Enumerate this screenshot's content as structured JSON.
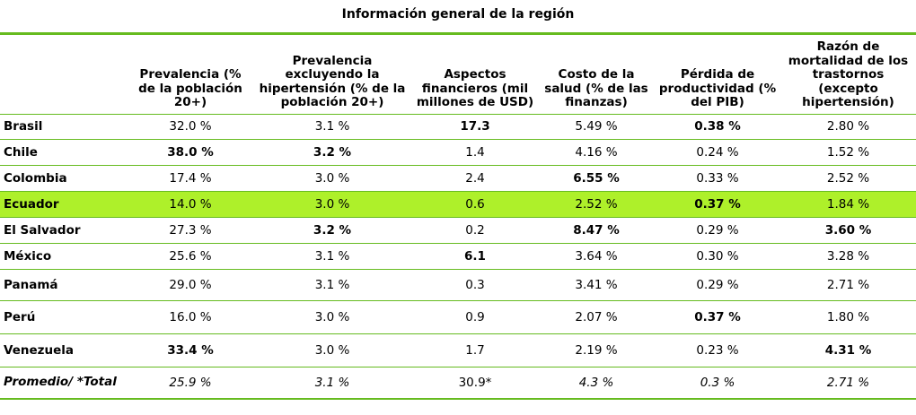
{
  "title": "Información general de la región",
  "headers": [
    "",
    "Prevalencia (% de la población 20+)",
    "Prevalencia excluyendo la hipertensión (% de la población 20+)",
    "Aspectos financieros (mil millones de USD)",
    "Costo de la salud (% de las finanzas)",
    "Pérdida de productividad (% del PIB)",
    "Razón de mortalidad de los trastornos (excepto hipertensión)"
  ],
  "rows": [
    {
      "label": "Brasil",
      "cells": [
        "32.0 %",
        "3.1 %",
        "17.3",
        "5.49 %",
        "0.38 %",
        "2.80 %"
      ]
    },
    {
      "label": "Chile",
      "cells": [
        "38.0 %",
        "3.2 %",
        "1.4",
        "4.16 %",
        "0.24 %",
        "1.52 %"
      ]
    },
    {
      "label": "Colombia",
      "cells": [
        "17.4 %",
        "3.0 %",
        "2.4",
        "6.55 %",
        "0.33 %",
        "2.52 %"
      ]
    },
    {
      "label": "Ecuador",
      "cells": [
        "14.0 %",
        "3.0 %",
        "0.6",
        "2.52 %",
        "0.37 %",
        "1.84 %"
      ]
    },
    {
      "label": "El Salvador",
      "cells": [
        "27.3 %",
        "3.2 %",
        "0.2",
        "8.47 %",
        "0.29 %",
        "3.60 %"
      ]
    },
    {
      "label": "México",
      "cells": [
        "25.6 %",
        "3.1 %",
        "6.1",
        "3.64 %",
        "0.30 %",
        "3.28 %"
      ]
    },
    {
      "label": "Panamá",
      "cells": [
        "29.0 %",
        "3.1 %",
        "0.3",
        "3.41 %",
        "0.29 %",
        "2.71 %"
      ]
    },
    {
      "label": "Perú",
      "cells": [
        "16.0 %",
        "3.0 %",
        "0.9",
        "2.07 %",
        "0.37 %",
        "1.80 %"
      ]
    },
    {
      "label": "Venezuela",
      "cells": [
        "33.4 %",
        "3.0 %",
        "1.7",
        "2.19 %",
        "0.23 %",
        "4.31 %"
      ]
    },
    {
      "label": "Promedio/ *Total",
      "cells": [
        "25.9 %",
        "3.1 %",
        "30.9*",
        "4.3 %",
        "0.3 %",
        "2.71 %"
      ]
    }
  ]
}
